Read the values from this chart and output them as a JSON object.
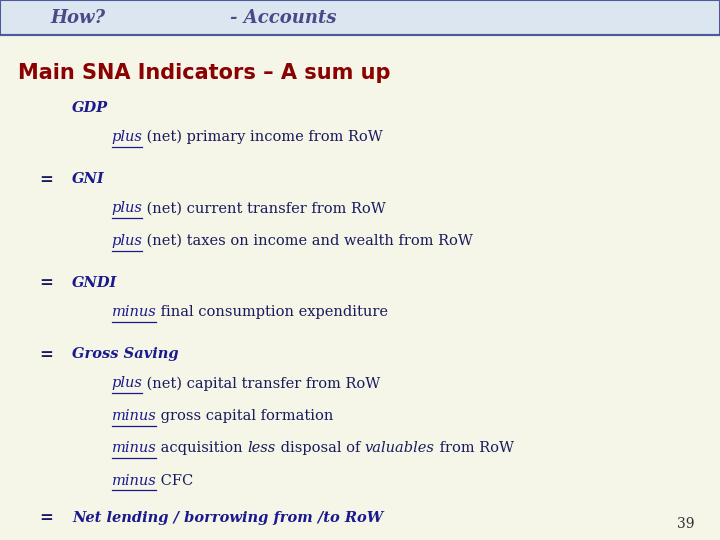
{
  "bg_color": "#f5f5e8",
  "header_bg": "#dce6f1",
  "header_border": "#4a5a9a",
  "title_text": "Main SNA Indicators – A sum up",
  "title_color": "#8B0000",
  "header_how": "How?",
  "header_accounts": "- Accounts",
  "header_text_color": "#4a4a8a",
  "body_color": "#1a1a6e",
  "equal_color": "#1a1a5e",
  "page_number": "39",
  "lines": [
    {
      "type": "indent1",
      "parts": [
        {
          "text": "GDP",
          "style": "italic_bold",
          "color": "#1a1a8e"
        }
      ]
    },
    {
      "type": "indent2",
      "parts": [
        {
          "text": "plus",
          "style": "underline_italic",
          "color": "#1a1a8e"
        },
        {
          "text": " (net) primary income from RoW",
          "style": "normal",
          "color": "#1a1a5e"
        }
      ]
    },
    {
      "type": "spacer"
    },
    {
      "type": "eq_indent1",
      "eq": "=",
      "parts": [
        {
          "text": "GNI",
          "style": "italic_bold",
          "color": "#1a1a8e"
        }
      ]
    },
    {
      "type": "indent2",
      "parts": [
        {
          "text": "plus",
          "style": "underline_italic",
          "color": "#1a1a8e"
        },
        {
          "text": " (net) current transfer from RoW",
          "style": "normal",
          "color": "#1a1a5e"
        }
      ]
    },
    {
      "type": "indent2",
      "parts": [
        {
          "text": "plus",
          "style": "underline_italic",
          "color": "#1a1a8e"
        },
        {
          "text": " (net) taxes on income and wealth from RoW",
          "style": "normal",
          "color": "#1a1a5e"
        }
      ]
    },
    {
      "type": "spacer"
    },
    {
      "type": "eq_indent1",
      "eq": "=",
      "parts": [
        {
          "text": "GNDI",
          "style": "italic_bold",
          "color": "#1a1a8e"
        }
      ]
    },
    {
      "type": "indent2",
      "parts": [
        {
          "text": "minus",
          "style": "underline_italic",
          "color": "#1a1a8e"
        },
        {
          "text": " final consumption expenditure",
          "style": "normal",
          "color": "#1a1a5e"
        }
      ]
    },
    {
      "type": "spacer"
    },
    {
      "type": "eq_indent1",
      "eq": "=",
      "parts": [
        {
          "text": "Gross Saving",
          "style": "italic_bold",
          "color": "#1a1a8e"
        }
      ]
    },
    {
      "type": "indent2",
      "parts": [
        {
          "text": "plus",
          "style": "underline_italic",
          "color": "#1a1a8e"
        },
        {
          "text": " (net) capital transfer from RoW",
          "style": "normal",
          "color": "#1a1a5e"
        }
      ]
    },
    {
      "type": "indent2",
      "parts": [
        {
          "text": "minus",
          "style": "underline_italic",
          "color": "#1a1a8e"
        },
        {
          "text": " gross capital formation",
          "style": "normal",
          "color": "#1a1a5e"
        }
      ]
    },
    {
      "type": "indent2",
      "parts": [
        {
          "text": "minus",
          "style": "underline_italic",
          "color": "#1a1a8e"
        },
        {
          "text": " acquisition ",
          "style": "normal",
          "color": "#1a1a5e"
        },
        {
          "text": "less",
          "style": "italic",
          "color": "#1a1a5e"
        },
        {
          "text": " disposal of ",
          "style": "normal",
          "color": "#1a1a5e"
        },
        {
          "text": "valuables",
          "style": "italic",
          "color": "#1a1a5e"
        },
        {
          "text": " from RoW",
          "style": "normal",
          "color": "#1a1a5e"
        }
      ]
    },
    {
      "type": "indent2",
      "parts": [
        {
          "text": "minus",
          "style": "underline_italic",
          "color": "#1a1a8e"
        },
        {
          "text": " CFC",
          "style": "normal",
          "color": "#1a1a5e"
        }
      ]
    },
    {
      "type": "spacer_small"
    },
    {
      "type": "eq_indent1",
      "eq": "=",
      "parts": [
        {
          "text": "Net lending / borrowing from /to RoW",
          "style": "italic_bold",
          "color": "#1a1a8e"
        }
      ]
    }
  ]
}
